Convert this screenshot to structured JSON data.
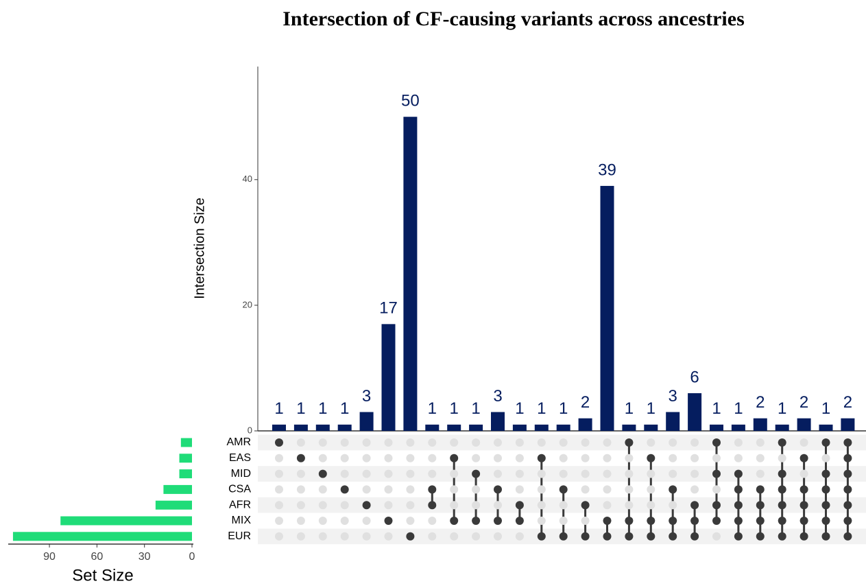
{
  "chart_data": {
    "type": "upset",
    "title": "Intersection of CF-causing variants across ancestries",
    "ylabel": "Intersection Size",
    "set_xlabel": "Set Size",
    "sets": [
      "AMR",
      "EAS",
      "MID",
      "CSA",
      "AFR",
      "MIX",
      "EUR"
    ],
    "set_sizes": [
      7,
      8,
      8,
      18,
      23,
      83,
      113
    ],
    "set_color": "#1fdc78",
    "set_xlim": [
      116,
      0
    ],
    "set_xticks": [
      90,
      60,
      30,
      0
    ],
    "values": [
      1,
      1,
      1,
      1,
      3,
      17,
      50,
      1,
      1,
      1,
      3,
      1,
      1,
      1,
      2,
      39,
      1,
      1,
      3,
      6,
      1,
      1,
      2,
      1,
      2,
      1,
      2
    ],
    "color": "#051d5f",
    "ylim": [
      0,
      58
    ],
    "yticks": [
      0,
      20,
      40
    ],
    "membership": [
      [
        1,
        0,
        0,
        0,
        0,
        0,
        0
      ],
      [
        0,
        1,
        0,
        0,
        0,
        0,
        0
      ],
      [
        0,
        0,
        1,
        0,
        0,
        0,
        0
      ],
      [
        0,
        0,
        0,
        1,
        0,
        0,
        0
      ],
      [
        0,
        0,
        0,
        0,
        1,
        0,
        0
      ],
      [
        0,
        0,
        0,
        0,
        0,
        1,
        0
      ],
      [
        0,
        0,
        0,
        0,
        0,
        0,
        1
      ],
      [
        0,
        0,
        0,
        1,
        1,
        0,
        0
      ],
      [
        0,
        1,
        0,
        0,
        0,
        1,
        0
      ],
      [
        0,
        0,
        1,
        0,
        0,
        1,
        0
      ],
      [
        0,
        0,
        0,
        1,
        0,
        1,
        0
      ],
      [
        0,
        0,
        0,
        0,
        1,
        1,
        0
      ],
      [
        0,
        1,
        0,
        0,
        0,
        0,
        1
      ],
      [
        0,
        0,
        0,
        1,
        0,
        0,
        1
      ],
      [
        0,
        0,
        0,
        0,
        1,
        0,
        1
      ],
      [
        0,
        0,
        0,
        0,
        0,
        1,
        1
      ],
      [
        1,
        0,
        0,
        0,
        0,
        1,
        1
      ],
      [
        0,
        1,
        0,
        0,
        0,
        1,
        1
      ],
      [
        0,
        0,
        0,
        1,
        0,
        1,
        1
      ],
      [
        0,
        0,
        0,
        0,
        1,
        1,
        1
      ],
      [
        1,
        0,
        1,
        0,
        1,
        1,
        0
      ],
      [
        0,
        0,
        1,
        1,
        1,
        1,
        1
      ],
      [
        0,
        0,
        0,
        1,
        1,
        1,
        1
      ],
      [
        1,
        0,
        1,
        1,
        1,
        1,
        1
      ],
      [
        0,
        1,
        0,
        1,
        1,
        1,
        1
      ],
      [
        1,
        0,
        1,
        1,
        1,
        1,
        1
      ],
      [
        1,
        1,
        1,
        1,
        1,
        1,
        1
      ]
    ],
    "dot_color": "#3a3a3a",
    "empty_dot_color": "#e0e0e0"
  }
}
